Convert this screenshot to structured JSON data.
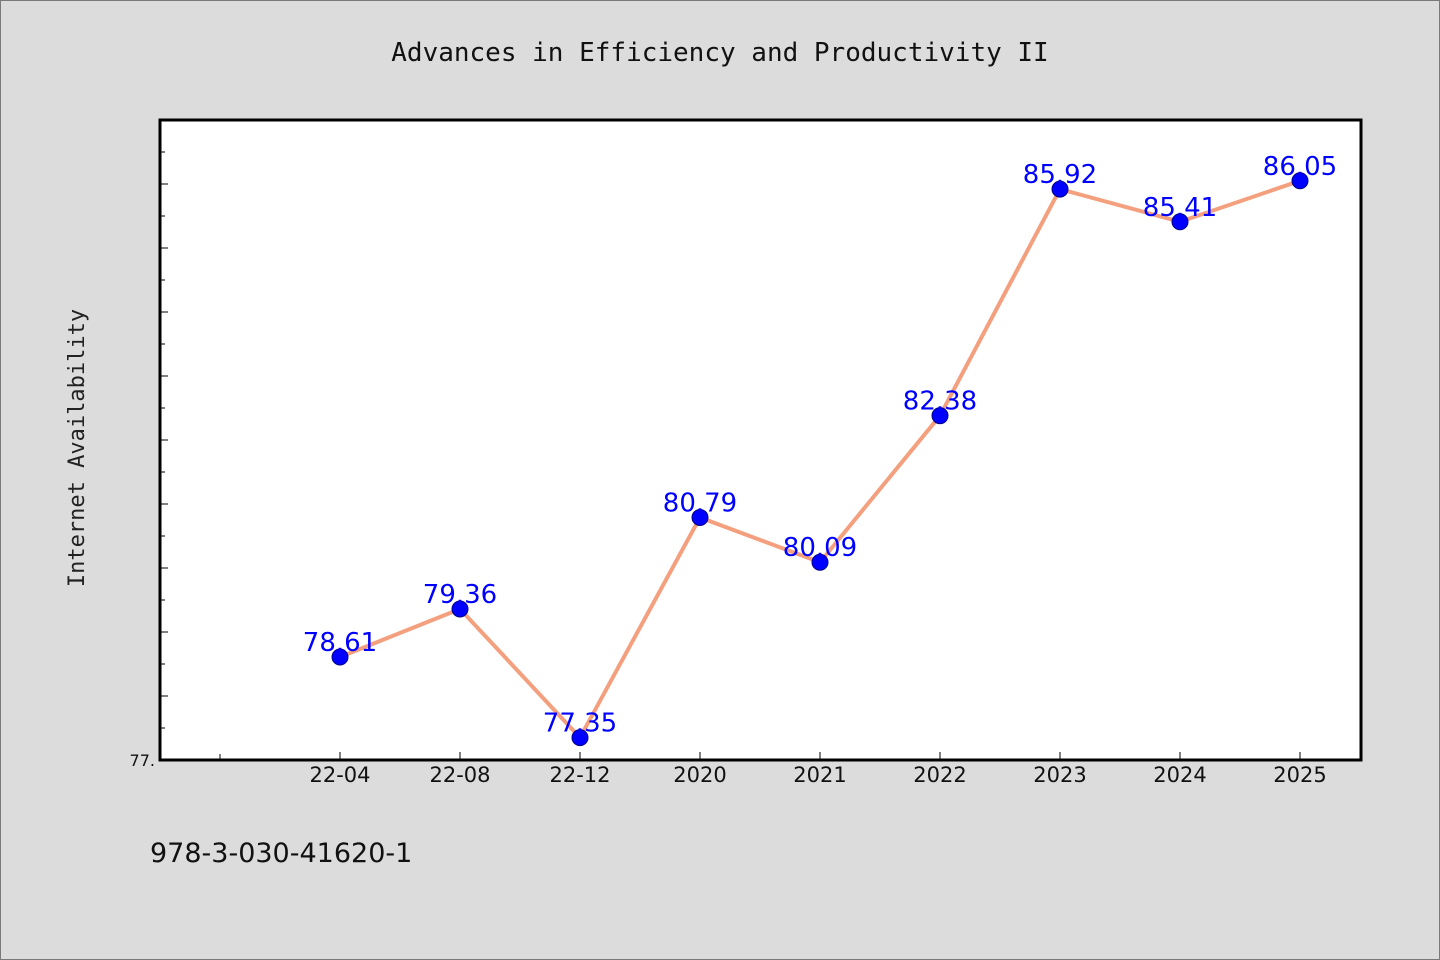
{
  "chart_data": {
    "type": "line",
    "title": "Advances in Efficiency and Productivity II",
    "ylabel": "Internet Availability",
    "xlabel": "",
    "categories": [
      "22-04",
      "22-08",
      "22-12",
      "2020",
      "2021",
      "2022",
      "2023",
      "2024",
      "2025"
    ],
    "series": [
      {
        "values": [
          78.61,
          79.36,
          77.35,
          80.79,
          80.09,
          82.38,
          85.92,
          85.41,
          86.05
        ],
        "data_labels": [
          "78.61",
          "79.36",
          "77.35",
          "80.79",
          "80.09",
          "82.38",
          "85.92",
          "85.41",
          "86.05"
        ],
        "line_color": "#f4a07e",
        "marker_color": "#0000ff"
      }
    ],
    "ylim": [
      77.0,
      87.0
    ],
    "ytick_label": "77.",
    "grid": false,
    "legend": "none"
  },
  "footer": {
    "isbn": "978-3-030-41620-1"
  },
  "colors": {
    "background": "#dcdcdc",
    "plot_background": "#ffffff",
    "line": "#f4a07e",
    "marker": "#0000ff",
    "data_label": "#0000ff"
  }
}
